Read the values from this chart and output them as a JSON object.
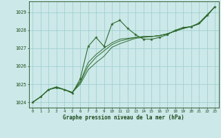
{
  "hours": [
    0,
    1,
    2,
    3,
    4,
    5,
    6,
    7,
    8,
    9,
    10,
    11,
    12,
    13,
    14,
    15,
    16,
    17,
    18,
    19,
    20,
    21,
    22,
    23
  ],
  "series_main": [
    1024.0,
    1024.3,
    1024.7,
    1024.8,
    1024.7,
    1024.5,
    1025.3,
    1027.1,
    1027.6,
    1027.1,
    1028.35,
    1028.55,
    1028.1,
    1027.75,
    1027.5,
    1027.5,
    1027.6,
    1027.75,
    1028.0,
    1028.15,
    1028.2,
    1028.4,
    1028.85,
    1029.3
  ],
  "series_smooth1": [
    1024.0,
    1024.3,
    1024.7,
    1024.85,
    1024.7,
    1024.55,
    1025.0,
    1025.8,
    1026.2,
    1026.55,
    1027.05,
    1027.25,
    1027.4,
    1027.55,
    1027.6,
    1027.65,
    1027.7,
    1027.8,
    1027.95,
    1028.1,
    1028.2,
    1028.35,
    1028.8,
    1029.3
  ],
  "series_smooth2": [
    1024.0,
    1024.3,
    1024.7,
    1024.85,
    1024.7,
    1024.55,
    1025.1,
    1026.0,
    1026.5,
    1026.85,
    1027.2,
    1027.4,
    1027.5,
    1027.6,
    1027.65,
    1027.65,
    1027.7,
    1027.8,
    1027.95,
    1028.1,
    1028.2,
    1028.35,
    1028.8,
    1029.3
  ],
  "series_smooth3": [
    1024.0,
    1024.3,
    1024.7,
    1024.85,
    1024.7,
    1024.55,
    1025.15,
    1026.2,
    1026.65,
    1027.0,
    1027.3,
    1027.5,
    1027.55,
    1027.6,
    1027.65,
    1027.65,
    1027.7,
    1027.8,
    1027.95,
    1028.1,
    1028.2,
    1028.35,
    1028.8,
    1029.3
  ],
  "line_color": "#2d6a2d",
  "bg_color": "#cce8e8",
  "grid_color": "#99cccc",
  "text_color": "#1a4a1a",
  "xlabel": "Graphe pression niveau de la mer (hPa)",
  "ylim": [
    1023.7,
    1029.6
  ],
  "yticks": [
    1024,
    1025,
    1026,
    1027,
    1028,
    1029
  ],
  "xticks": [
    0,
    1,
    2,
    3,
    4,
    5,
    6,
    7,
    8,
    9,
    10,
    11,
    12,
    13,
    14,
    15,
    16,
    17,
    18,
    19,
    20,
    21,
    22,
    23
  ]
}
